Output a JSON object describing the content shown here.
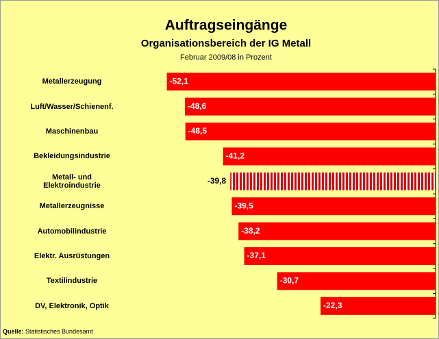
{
  "chart_data": {
    "type": "bar",
    "orientation": "horizontal",
    "title": "Auftragseingänge",
    "subtitle": "Organisationsbereich der IG Metall",
    "note": "Februar 2009/08 in Prozent",
    "categories": [
      "Metallerzeugung",
      "Luft/Wasser/Schienenf.",
      "Maschinenbau",
      "Bekleidungsindustrie",
      "Metall- und Elektroindustrie",
      "Metallerzeugnisse",
      "Automobilindustrie",
      "Elektr. Ausrüstungen",
      "Textilindustrie",
      "DV, Elektronik, Optik"
    ],
    "values": [
      -52.1,
      -48.6,
      -48.5,
      -41.2,
      -39.8,
      -39.5,
      -38.2,
      -37.1,
      -30.7,
      -22.3
    ],
    "value_labels": [
      "-52,1",
      "-48,6",
      "-48,5",
      "-41,2",
      "-39,8",
      "-39,5",
      "-38,2",
      "-37,1",
      "-30,7",
      "-22,3"
    ],
    "color": "#ff0000",
    "highlight": 4,
    "xlim": [
      -53.5,
      0
    ],
    "source_label": "Quelle:",
    "source": "Statistisches Bundesamt"
  }
}
